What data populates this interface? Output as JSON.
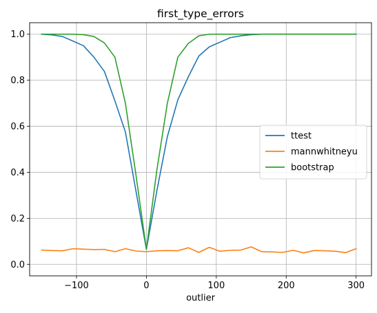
{
  "chart_data": {
    "type": "line",
    "title": "first_type_errors",
    "xlabel": "outlier",
    "ylabel": "",
    "xlim": [
      -167,
      322
    ],
    "ylim": [
      -0.05,
      1.05
    ],
    "x_ticks": [
      -100,
      0,
      100,
      200,
      300
    ],
    "x_tick_labels": [
      "−100",
      "0",
      "100",
      "200",
      "300"
    ],
    "y_ticks": [
      0.0,
      0.2,
      0.4,
      0.6,
      0.8,
      1.0
    ],
    "y_tick_labels": [
      "0.0",
      "0.2",
      "0.4",
      "0.6",
      "0.8",
      "1.0"
    ],
    "grid": true,
    "legend_position": "center-right",
    "x": [
      -150,
      -135,
      -120,
      -105,
      -90,
      -75,
      -60,
      -45,
      -30,
      -15,
      0,
      15,
      30,
      45,
      60,
      75,
      90,
      105,
      120,
      135,
      150,
      165,
      180,
      195,
      210,
      225,
      240,
      255,
      270,
      285,
      300
    ],
    "series": [
      {
        "name": "ttest",
        "color": "#1f77b4",
        "values": [
          1.0,
          0.997,
          0.99,
          0.97,
          0.95,
          0.9,
          0.838,
          0.71,
          0.575,
          0.32,
          0.065,
          0.32,
          0.555,
          0.715,
          0.815,
          0.905,
          0.945,
          0.965,
          0.985,
          0.993,
          0.998,
          1.0,
          1.0,
          1.0,
          1.0,
          1.0,
          1.0,
          1.0,
          1.0,
          1.0,
          1.0
        ]
      },
      {
        "name": "mannwhitneyu",
        "color": "#ff7f0e",
        "values": [
          0.062,
          0.06,
          0.059,
          0.068,
          0.066,
          0.064,
          0.065,
          0.055,
          0.068,
          0.058,
          0.055,
          0.059,
          0.06,
          0.059,
          0.072,
          0.052,
          0.074,
          0.057,
          0.061,
          0.062,
          0.076,
          0.055,
          0.054,
          0.052,
          0.061,
          0.05,
          0.06,
          0.059,
          0.057,
          0.051,
          0.068
        ]
      },
      {
        "name": "bootstrap",
        "color": "#2ca02c",
        "values": [
          1.0,
          1.0,
          1.0,
          1.0,
          0.998,
          0.99,
          0.962,
          0.9,
          0.7,
          0.39,
          0.065,
          0.41,
          0.7,
          0.9,
          0.96,
          0.993,
          1.0,
          1.0,
          1.0,
          1.0,
          1.0,
          1.0,
          1.0,
          1.0,
          1.0,
          1.0,
          1.0,
          1.0,
          1.0,
          1.0,
          1.0
        ]
      }
    ]
  }
}
